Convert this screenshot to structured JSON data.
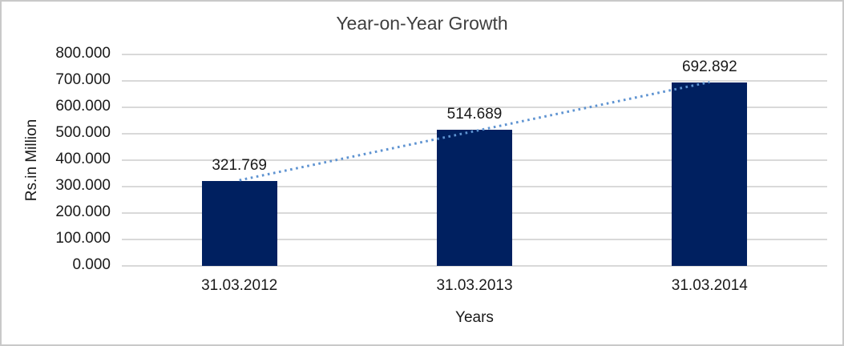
{
  "chart_data": {
    "type": "bar",
    "title": "Year-on-Year Growth",
    "xlabel": "Years",
    "ylabel": "Rs.in Million",
    "categories": [
      "31.03.2012",
      "31.03.2013",
      "31.03.2014"
    ],
    "values": [
      321.769,
      514.689,
      692.892
    ],
    "value_labels": [
      "321.769",
      "514.689",
      "692.892"
    ],
    "ylim": [
      0,
      800
    ],
    "ytick_step": 100,
    "ytick_labels": [
      "0.000",
      "100.000",
      "200.000",
      "300.000",
      "400.000",
      "500.000",
      "600.000",
      "700.000",
      "800.000"
    ],
    "grid": true,
    "legend": "none",
    "trendline": {
      "type": "linear",
      "style": "dotted"
    },
    "colors": {
      "bar": "#002060",
      "trendline": "#5e93d1",
      "gridline": "#d9d9d9",
      "frame_border": "#c9c9c9",
      "title_text": "#3f3f3f",
      "label_text": "#1a1a1a"
    }
  }
}
